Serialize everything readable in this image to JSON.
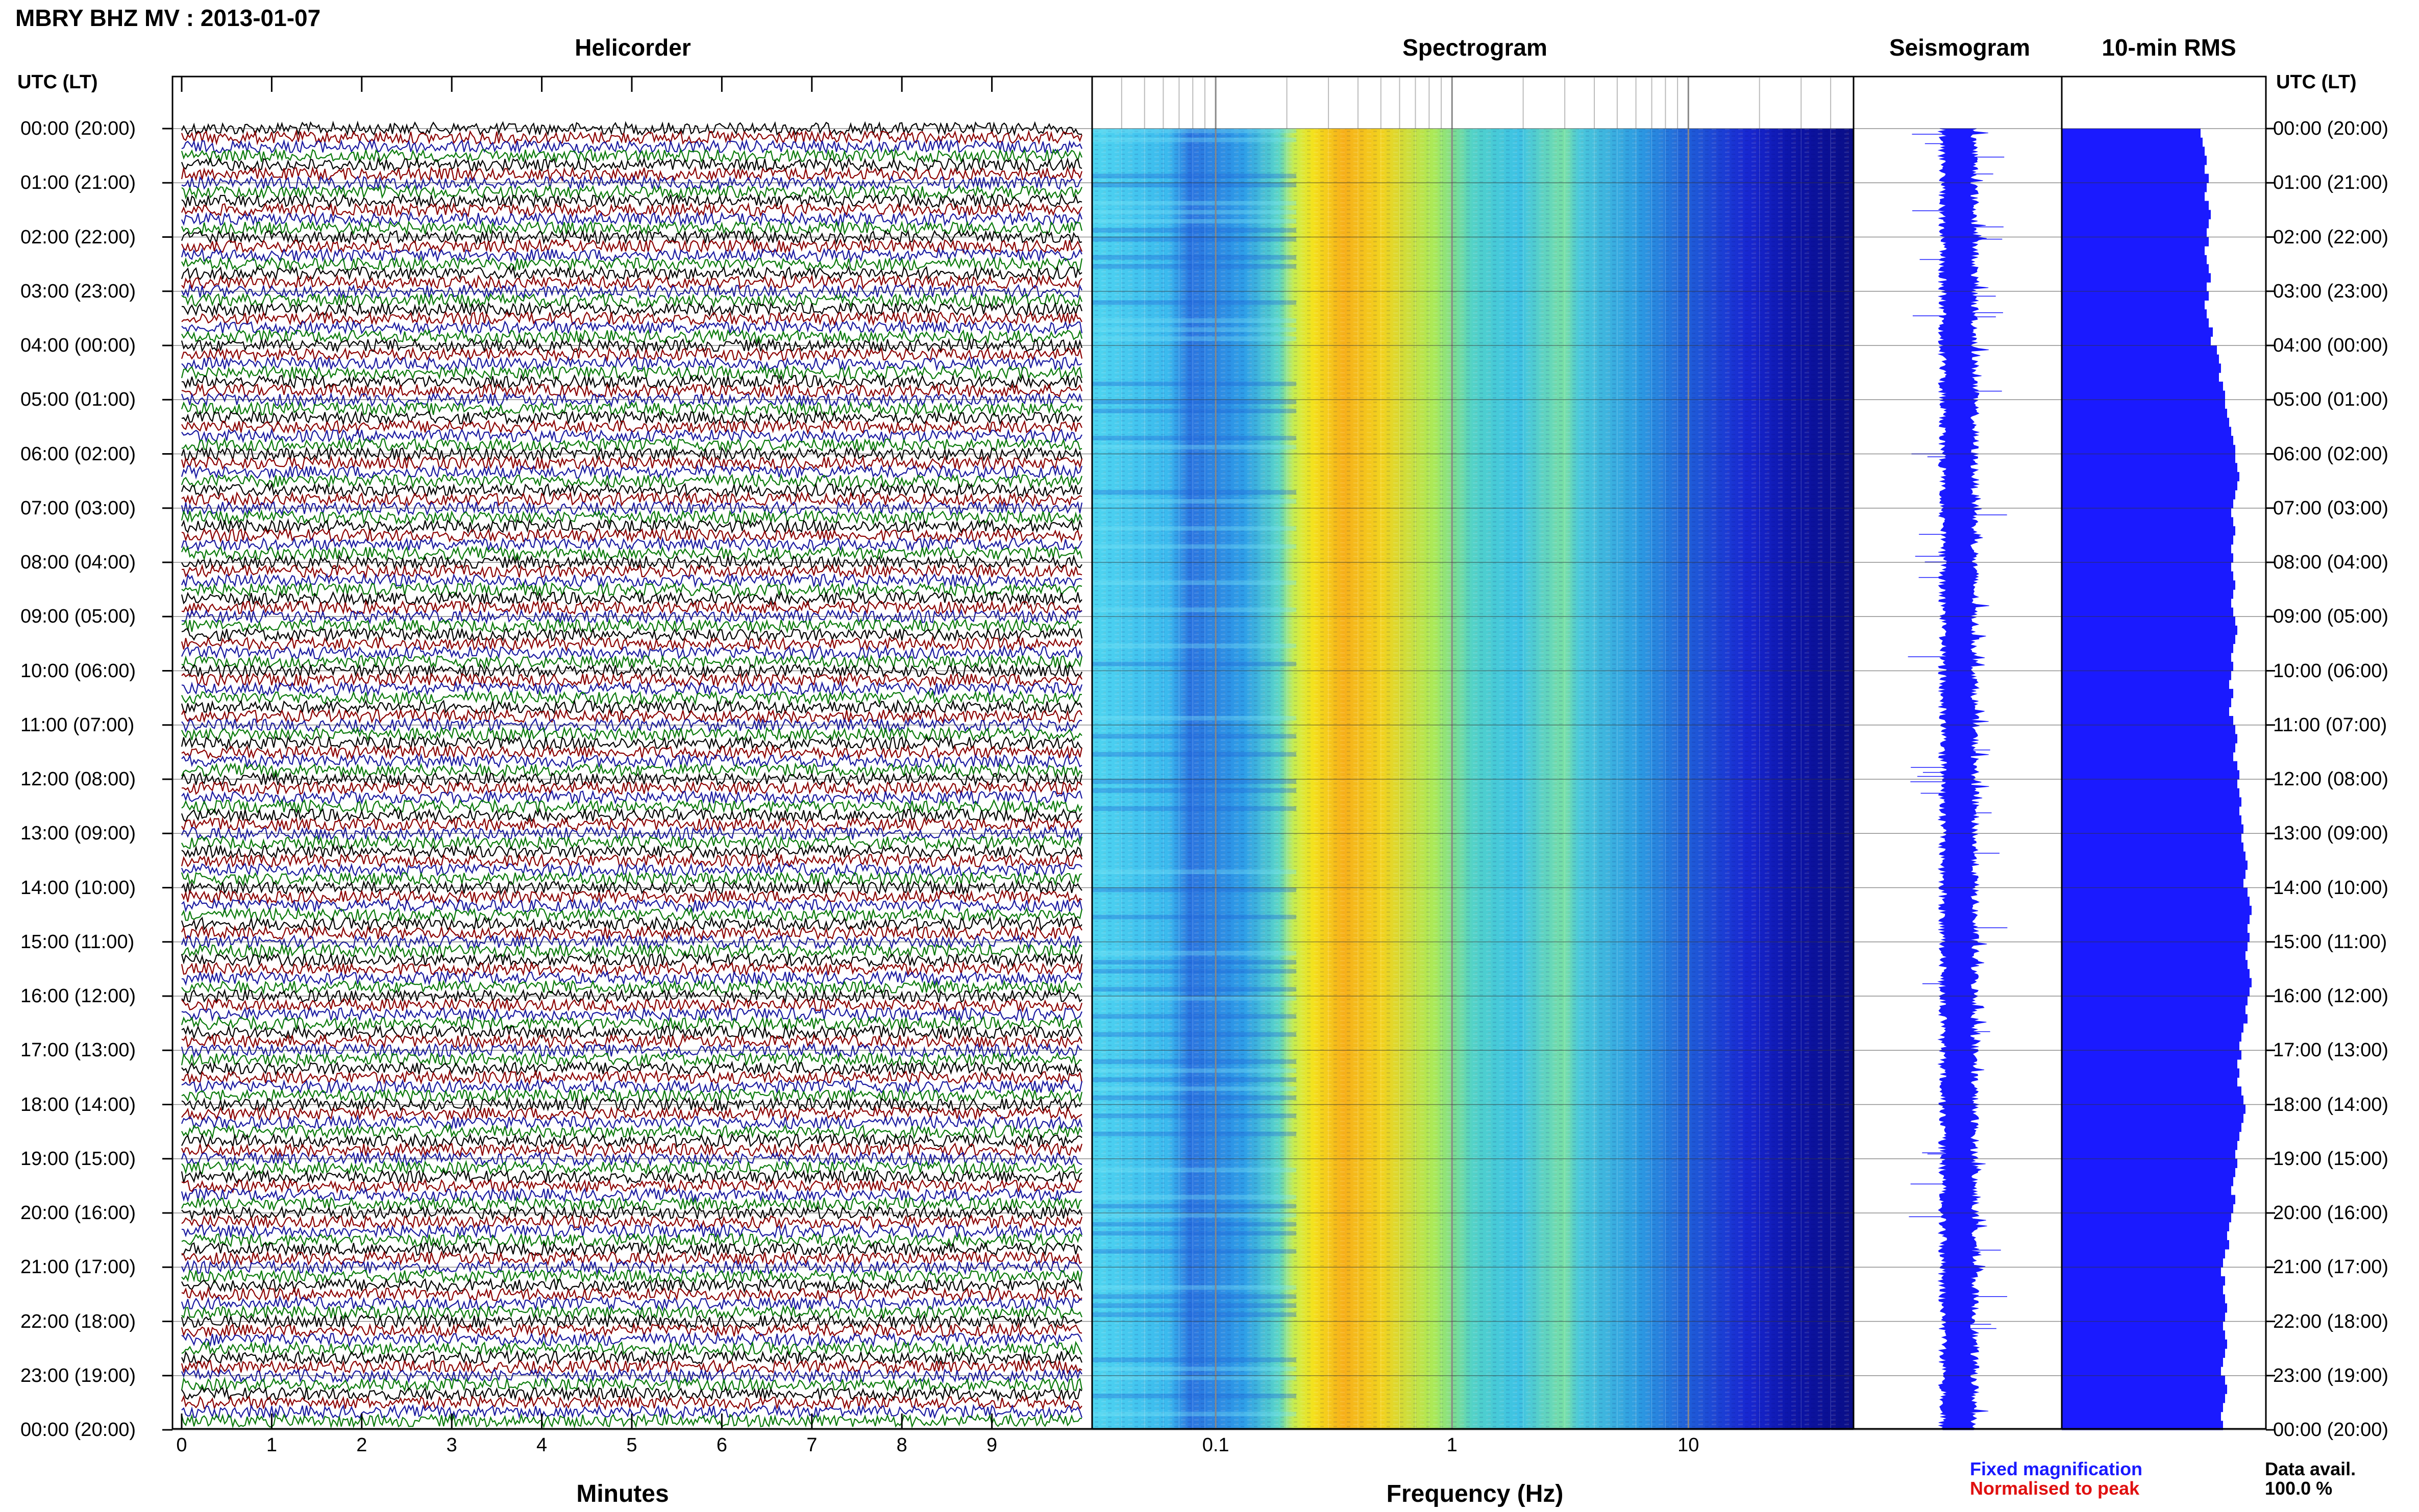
{
  "header": {
    "title": "MBRY BHZ MV : 2013-01-07"
  },
  "panels": {
    "helicorder": "Helicorder",
    "spectrogram": "Spectrogram",
    "seismogram": "Seismogram",
    "rms": "10-min RMS"
  },
  "axis": {
    "utc_left": "UTC (LT)",
    "utc_right": "UTC (LT)",
    "minutes_label": "Minutes",
    "frequency_label": "Frequency (Hz)"
  },
  "time_labels": [
    "00:00 (20:00)",
    "01:00 (21:00)",
    "02:00 (22:00)",
    "03:00 (23:00)",
    "04:00 (00:00)",
    "05:00 (01:00)",
    "06:00 (02:00)",
    "07:00 (03:00)",
    "08:00 (04:00)",
    "09:00 (05:00)",
    "10:00 (06:00)",
    "11:00 (07:00)",
    "12:00 (08:00)",
    "13:00 (09:00)",
    "14:00 (10:00)",
    "15:00 (11:00)",
    "16:00 (12:00)",
    "17:00 (13:00)",
    "18:00 (14:00)",
    "19:00 (15:00)",
    "20:00 (16:00)",
    "21:00 (17:00)",
    "22:00 (18:00)",
    "23:00 (19:00)",
    "00:00 (20:00)"
  ],
  "legend": {
    "fixed": "Fixed magnification",
    "normalised": "Normalised to peak",
    "data_avail_label": "Data avail.",
    "data_avail_value": "100.0 %"
  },
  "colors": {
    "helicorder_traces": [
      "#000000",
      "#8b0000",
      "#1a1aa0",
      "#0a7a0a"
    ],
    "seismogram": "#1a1aff",
    "rms": "#1a1aff",
    "legend_fixed": "#1a1aff",
    "legend_normalised": "#e01010"
  },
  "chart_data": [
    {
      "type": "line",
      "name": "helicorder",
      "xlabel": "Minutes",
      "x_ticks": [
        "0",
        "1",
        "2",
        "3",
        "4",
        "5",
        "6",
        "7",
        "8",
        "9"
      ],
      "xlim": [
        0,
        10
      ],
      "rows_per_hour": 6,
      "hours": 24
    },
    {
      "type": "heatmap",
      "name": "spectrogram",
      "xlabel": "Frequency (Hz)",
      "x_scale": "log",
      "x_ticks": [
        "0.1",
        "1",
        "10"
      ],
      "xlim": [
        0.03,
        50
      ],
      "note_peak_band_hz": [
        0.2,
        0.45
      ]
    },
    {
      "type": "bar",
      "name": "10-min RMS",
      "orientation": "horizontal",
      "interval_minutes": 10,
      "values": [
        0.68,
        0.69,
        0.7,
        0.71,
        0.7,
        0.72,
        0.71,
        0.7,
        0.72,
        0.73,
        0.72,
        0.71,
        0.72,
        0.7,
        0.71,
        0.72,
        0.73,
        0.71,
        0.72,
        0.7,
        0.71,
        0.72,
        0.74,
        0.73,
        0.76,
        0.77,
        0.78,
        0.77,
        0.79,
        0.8,
        0.8,
        0.81,
        0.82,
        0.83,
        0.84,
        0.85,
        0.85,
        0.86,
        0.87,
        0.86,
        0.85,
        0.84,
        0.83,
        0.84,
        0.85,
        0.84,
        0.83,
        0.84,
        0.83,
        0.84,
        0.85,
        0.84,
        0.83,
        0.84,
        0.85,
        0.86,
        0.85,
        0.84,
        0.83,
        0.84,
        0.83,
        0.82,
        0.84,
        0.83,
        0.82,
        0.84,
        0.85,
        0.86,
        0.85,
        0.84,
        0.86,
        0.87,
        0.86,
        0.87,
        0.88,
        0.87,
        0.88,
        0.89,
        0.88,
        0.89,
        0.9,
        0.91,
        0.9,
        0.89,
        0.91,
        0.92,
        0.93,
        0.92,
        0.91,
        0.92,
        0.91,
        0.9,
        0.91,
        0.92,
        0.93,
        0.92,
        0.91,
        0.9,
        0.91,
        0.89,
        0.88,
        0.87,
        0.88,
        0.86,
        0.87,
        0.86,
        0.88,
        0.89,
        0.9,
        0.89,
        0.88,
        0.87,
        0.86,
        0.85,
        0.86,
        0.85,
        0.84,
        0.83,
        0.85,
        0.84,
        0.83,
        0.82,
        0.81,
        0.82,
        0.8,
        0.79,
        0.78,
        0.8,
        0.79,
        0.8,
        0.81,
        0.8,
        0.79,
        0.8,
        0.81,
        0.8,
        0.79,
        0.78,
        0.8,
        0.81,
        0.8,
        0.79,
        0.78,
        0.79
      ],
      "xlim": [
        0,
        1
      ]
    }
  ]
}
